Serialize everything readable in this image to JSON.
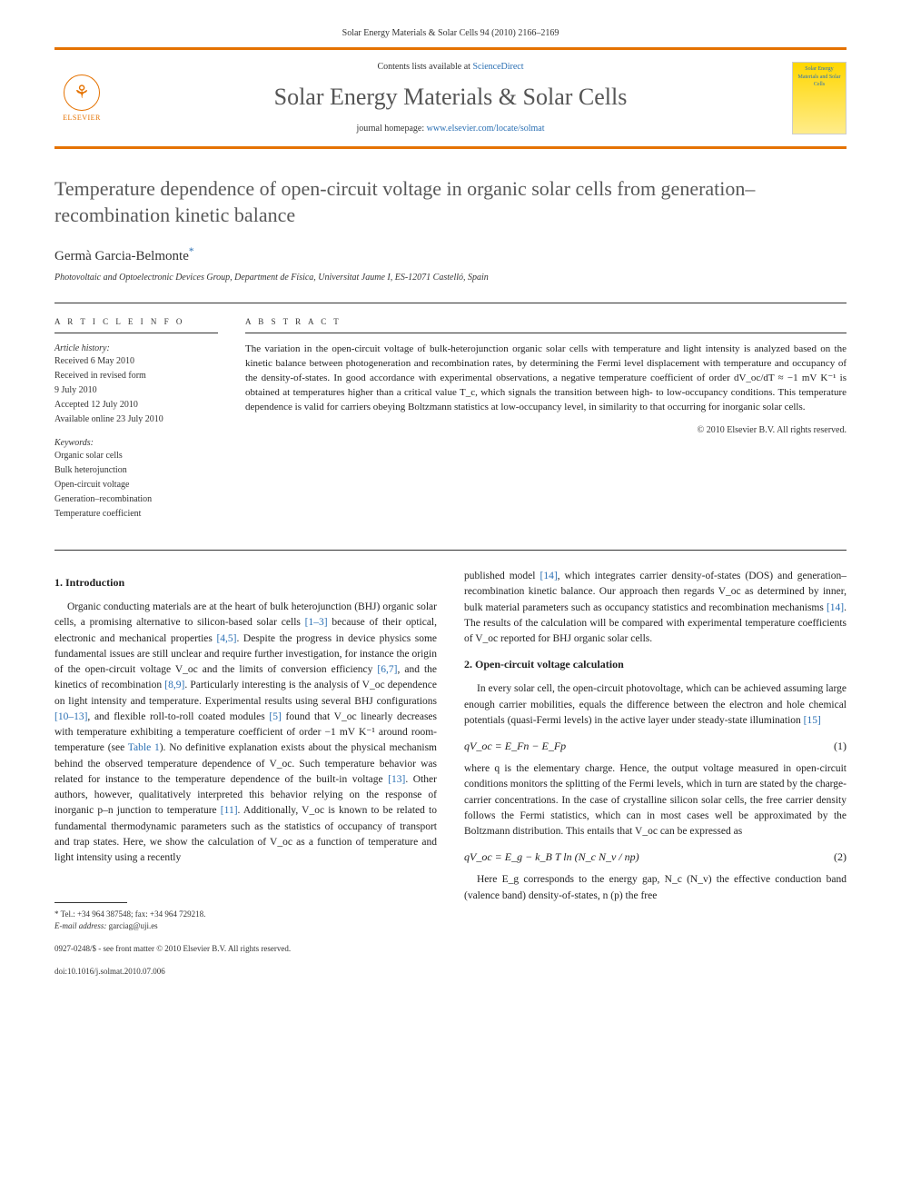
{
  "header": {
    "running_head": "Solar Energy Materials & Solar Cells 94 (2010) 2166–2169",
    "contents_prefix": "Contents lists available at ",
    "contents_link": "ScienceDirect",
    "journal_name": "Solar Energy Materials & Solar Cells",
    "homepage_prefix": "journal homepage: ",
    "homepage_link": "www.elsevier.com/locate/solmat",
    "elsevier_label": "ELSEVIER",
    "cover_text": "Solar Energy Materials and Solar Cells",
    "accent_color": "#e57200",
    "link_color": "#2a6fb3"
  },
  "article": {
    "title": "Temperature dependence of open-circuit voltage in organic solar cells from generation–recombination kinetic balance",
    "author": "Germà Garcia-Belmonte",
    "author_mark": "*",
    "affiliation": "Photovoltaic and Optoelectronic Devices Group, Department de Física, Universitat Jaume I, ES-12071 Castelló, Spain"
  },
  "info": {
    "heading": "A R T I C L E   I N F O",
    "history_label": "Article history:",
    "history": [
      "Received 6 May 2010",
      "Received in revised form",
      "9 July 2010",
      "Accepted 12 July 2010",
      "Available online 23 July 2010"
    ],
    "keywords_label": "Keywords:",
    "keywords": [
      "Organic solar cells",
      "Bulk heterojunction",
      "Open-circuit voltage",
      "Generation–recombination",
      "Temperature coefficient"
    ]
  },
  "abstract": {
    "heading": "A B S T R A C T",
    "text": "The variation in the open-circuit voltage of bulk-heterojunction organic solar cells with temperature and light intensity is analyzed based on the kinetic balance between photogeneration and recombination rates, by determining the Fermi level displacement with temperature and occupancy of the density-of-states. In good accordance with experimental observations, a negative temperature coefficient of order dV_oc/dT ≈ −1 mV K⁻¹ is obtained at temperatures higher than a critical value T_c, which signals the transition between high- to low-occupancy conditions. This temperature dependence is valid for carriers obeying Boltzmann statistics at low-occupancy level, in similarity to that occurring for inorganic solar cells.",
    "copyright": "© 2010 Elsevier B.V. All rights reserved."
  },
  "sections": {
    "s1_heading": "1.  Introduction",
    "s1_p1a": "Organic conducting materials are at the heart of bulk heterojunction (BHJ) organic solar cells, a promising alternative to silicon-based solar cells ",
    "s1_ref1": "[1–3]",
    "s1_p1b": " because of their optical, electronic and mechanical properties ",
    "s1_ref2": "[4,5]",
    "s1_p1c": ". Despite the progress in device physics some fundamental issues are still unclear and require further investigation, for instance the origin of the open-circuit voltage V_oc and the limits of conversion efficiency ",
    "s1_ref3": "[6,7]",
    "s1_p1d": ", and the kinetics of recombination ",
    "s1_ref4": "[8,9]",
    "s1_p1e": ". Particularly interesting is the analysis of V_oc dependence on light intensity and temperature. Experimental results using several BHJ configurations ",
    "s1_ref5": "[10–13]",
    "s1_p1f": ", and flexible roll-to-roll coated modules ",
    "s1_ref6": "[5]",
    "s1_p1g": " found that V_oc linearly decreases with temperature exhibiting a temperature coefficient of order −1 mV K⁻¹ around room-temperature (see ",
    "s1_table1": "Table 1",
    "s1_p1h": "). No definitive explanation exists about the physical mechanism behind the observed temperature dependence of V_oc. Such temperature behavior was related for instance to the temperature dependence of the built-in voltage ",
    "s1_ref7": "[13]",
    "s1_p1i": ". Other authors, however, qualitatively interpreted this behavior relying on the response of inorganic p–n junction to temperature ",
    "s1_ref8": "[11]",
    "s1_p1j": ". Additionally, V_oc is known to be related to fundamental thermodynamic parameters such as the statistics of occupancy of transport and trap states. Here, we show the calculation of V_oc as a function of temperature and light intensity using a recently",
    "s1_p2a": "published model ",
    "s1_ref9": "[14]",
    "s1_p2b": ", which integrates carrier density-of-states (DOS) and generation–recombination kinetic balance. Our approach then regards V_oc as determined by inner, bulk material parameters such as occupancy statistics and recombination mechanisms ",
    "s1_ref10": "[14]",
    "s1_p2c": ". The results of the calculation will be compared with experimental temperature coefficients of V_oc reported for BHJ organic solar cells.",
    "s2_heading": "2.  Open-circuit voltage calculation",
    "s2_p1a": "In every solar cell, the open-circuit photovoltage, which can be achieved assuming large enough carrier mobilities, equals the difference between the electron and hole chemical potentials (quasi-Fermi levels) in the active layer under steady-state illumination ",
    "s2_ref1": "[15]",
    "eq1_body": "qV_oc = E_Fn − E_Fp",
    "eq1_num": "(1)",
    "s2_p2": "where q is the elementary charge. Hence, the output voltage measured in open-circuit conditions monitors the splitting of the Fermi levels, which in turn are stated by the charge-carrier concentrations. In the case of crystalline silicon solar cells, the free carrier density follows the Fermi statistics, which can in most cases well be approximated by the Boltzmann distribution. This entails that V_oc can be expressed as",
    "eq2_body": "qV_oc = E_g − k_B T ln (N_c N_v / np)",
    "eq2_num": "(2)",
    "s2_p3": "Here E_g corresponds to the energy gap, N_c (N_v) the effective conduction band (valence band) density-of-states, n (p) the free"
  },
  "footnote": {
    "corr": "* Tel.: +34 964 387548; fax: +34 964 729218.",
    "email_label": "E-mail address: ",
    "email": "garciag@uji.es"
  },
  "footer": {
    "issn": "0927-0248/$ - see front matter © 2010 Elsevier B.V. All rights reserved.",
    "doi": "doi:10.1016/j.solmat.2010.07.006"
  }
}
